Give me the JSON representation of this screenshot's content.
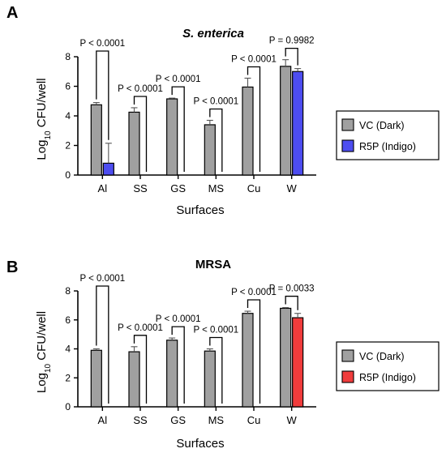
{
  "chart_data": [
    {
      "panel": "A",
      "type": "bar",
      "title": "S. enterica",
      "xlabel": "Surfaces",
      "ylabel_main": "Log",
      "ylabel_sub": "10",
      "ylabel_tail": " CFU/well",
      "ylim": [
        0,
        8
      ],
      "yticks": [
        "0",
        "2",
        "4",
        "6",
        "8"
      ],
      "categories": [
        "Al",
        "SS",
        "GS",
        "MS",
        "Cu",
        "W"
      ],
      "series": [
        {
          "name": "VC (Dark)",
          "color": "#a0a0a0",
          "values": [
            4.75,
            4.25,
            5.15,
            3.4,
            5.95,
            7.35
          ],
          "errors": [
            0.15,
            0.3,
            0.05,
            0.3,
            0.6,
            0.45
          ]
        },
        {
          "name": "R5P (Indigo)",
          "color": "#4d4df0",
          "values": [
            0.8,
            0,
            0,
            0,
            0,
            7.0
          ],
          "errors": [
            1.35,
            0,
            0,
            0,
            0,
            0.2
          ]
        }
      ],
      "annotations": [
        "P < 0.0001",
        "P < 0.0001",
        "P < 0.0001",
        "P < 0.0001",
        "P < 0.0001",
        "P = 0.9982"
      ],
      "legend_position": "right"
    },
    {
      "panel": "B",
      "type": "bar",
      "title": "MRSA",
      "xlabel": "Surfaces",
      "ylabel_main": "Log",
      "ylabel_sub": "10",
      "ylabel_tail": " CFU/well",
      "ylim": [
        0,
        8
      ],
      "yticks": [
        "0",
        "2",
        "4",
        "6",
        "8"
      ],
      "categories": [
        "Al",
        "SS",
        "GS",
        "MS",
        "Cu",
        "W"
      ],
      "series": [
        {
          "name": "VC (Dark)",
          "color": "#a0a0a0",
          "values": [
            3.9,
            3.8,
            4.6,
            3.85,
            6.45,
            6.8
          ],
          "errors": [
            0.1,
            0.35,
            0.15,
            0.15,
            0.15,
            0.05
          ]
        },
        {
          "name": "R5P (Indigo)",
          "color": "#f03c3c",
          "values": [
            0,
            0,
            0,
            0,
            0,
            6.15
          ],
          "errors": [
            0,
            0,
            0,
            0,
            0,
            0.3
          ]
        }
      ],
      "annotations": [
        "P < 0.0001",
        "P < 0.0001",
        "P < 0.0001",
        "P < 0.0001",
        "P < 0.0001",
        "P = 0.0033"
      ],
      "legend_position": "right"
    }
  ]
}
